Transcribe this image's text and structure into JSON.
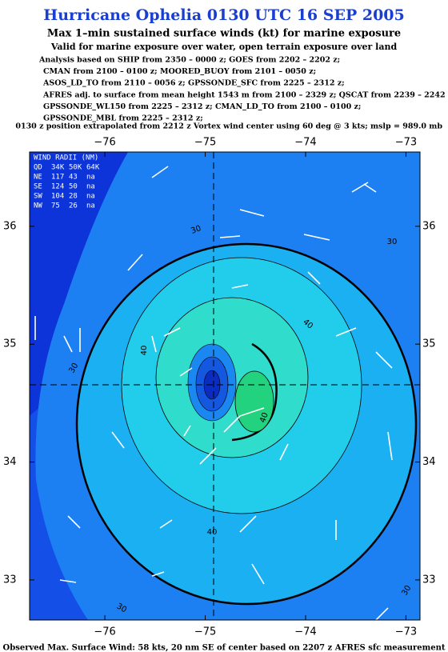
{
  "header": {
    "title": "Hurricane Ophelia 0130 UTC 16 SEP 2005",
    "subtitle": "Max 1–min sustained surface winds (kt) for marine exposure",
    "validity": "Valid for marine exposure over water, open terrain exposure over land",
    "analysis": [
      "Analysis based on  SHIP from 2350 – 0000 z;  GOES from 2202 – 2202 z;",
      "CMAN from 2100 – 0100 z;  MOORED_BUOY from 2101 – 0050 z;",
      "ASOS_LD_TO from 2110 – 0056 z;  GPSSONDE_SFC from 2225 – 2312 z;",
      "AFRES adj. to surface from mean height 1543 m from 2100 – 2329 z;  QSCAT from 2239 – 2242 z;",
      "GPSSONDE_WL150 from 2225 – 2312 z;  CMAN_LD_TO from 2100 – 0100 z;",
      "GPSSONDE_MBL from 2225 – 2312 z;"
    ],
    "position": "0130 z position extrapolated from 2212 z Vortex wind center using 60 deg @ 3 kts; mslp = 989.0 mb"
  },
  "map": {
    "xlim": [
      -76.75,
      -72.86
    ],
    "ylim": [
      32.66,
      36.63
    ],
    "xticks": [
      {
        "value": -76,
        "label": "−76"
      },
      {
        "value": -75,
        "label": "−75"
      },
      {
        "value": -74,
        "label": "−74"
      },
      {
        "value": -73,
        "label": "−73"
      }
    ],
    "yticks": [
      33,
      34,
      35,
      36
    ],
    "wind_radii": {
      "title": "WIND RADII (NM)",
      "rows": [
        [
          "QD",
          "34K",
          "50K",
          "64K"
        ],
        [
          "NE",
          "117",
          "43",
          "na"
        ],
        [
          "SE",
          "124",
          "50",
          "na"
        ],
        [
          "SW",
          "104",
          "28",
          "na"
        ],
        [
          "NW",
          "75",
          "26",
          "na"
        ]
      ]
    },
    "contour_labels": [
      "30",
      "30",
      "40",
      "40",
      "30",
      "40",
      "30",
      "30",
      "40"
    ]
  },
  "footer": "Observed Max. Surface Wind: 58 kts, 20 nm SE of center based on 2207 z AFRES sfc measurement"
}
